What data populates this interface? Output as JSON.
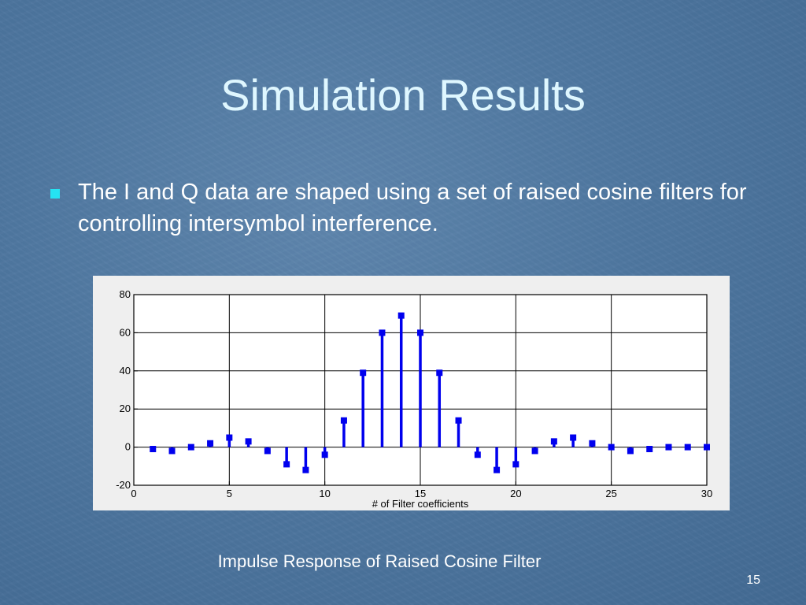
{
  "slide": {
    "title": "Simulation Results",
    "bullet": "The I and Q data are shaped using a set of raised cosine filters for controlling intersymbol interference.",
    "caption": "Impulse Response of Raised Cosine Filter",
    "page_number": "15"
  },
  "colors": {
    "title": "#dff7ff",
    "bullet_marker": "#25e3f2",
    "stem": "#0000ee",
    "chart_background": "#efefef"
  },
  "chart_data": {
    "type": "scatter",
    "style": "stem",
    "title": "",
    "xlabel": "# of Filter coefficients",
    "ylabel": "",
    "xlim": [
      0,
      30
    ],
    "ylim": [
      -20,
      80
    ],
    "grid": true,
    "x_ticks": [
      0,
      5,
      10,
      15,
      20,
      25,
      30
    ],
    "y_ticks": [
      -20,
      0,
      20,
      40,
      60,
      80
    ],
    "x_tick_labels": [
      "0",
      "5",
      "10",
      "15",
      "20",
      "25",
      "30"
    ],
    "y_tick_labels": [
      "-20",
      "0",
      "20",
      "40",
      "60",
      "80"
    ],
    "series": [
      {
        "x": [
          1,
          2,
          3,
          4,
          5,
          6,
          7,
          8,
          9,
          10,
          11,
          12,
          13,
          14,
          15,
          16,
          17,
          18,
          19,
          20,
          21,
          22,
          23,
          24,
          25,
          26,
          27,
          28,
          29,
          30
        ],
        "y": [
          -1,
          -2,
          0,
          2,
          5,
          3,
          -2,
          -9,
          -12,
          -4,
          14,
          39,
          60,
          69,
          60,
          39,
          14,
          -4,
          -12,
          -9,
          -2,
          3,
          5,
          2,
          0,
          -2,
          -1,
          0,
          0,
          0
        ]
      }
    ]
  }
}
